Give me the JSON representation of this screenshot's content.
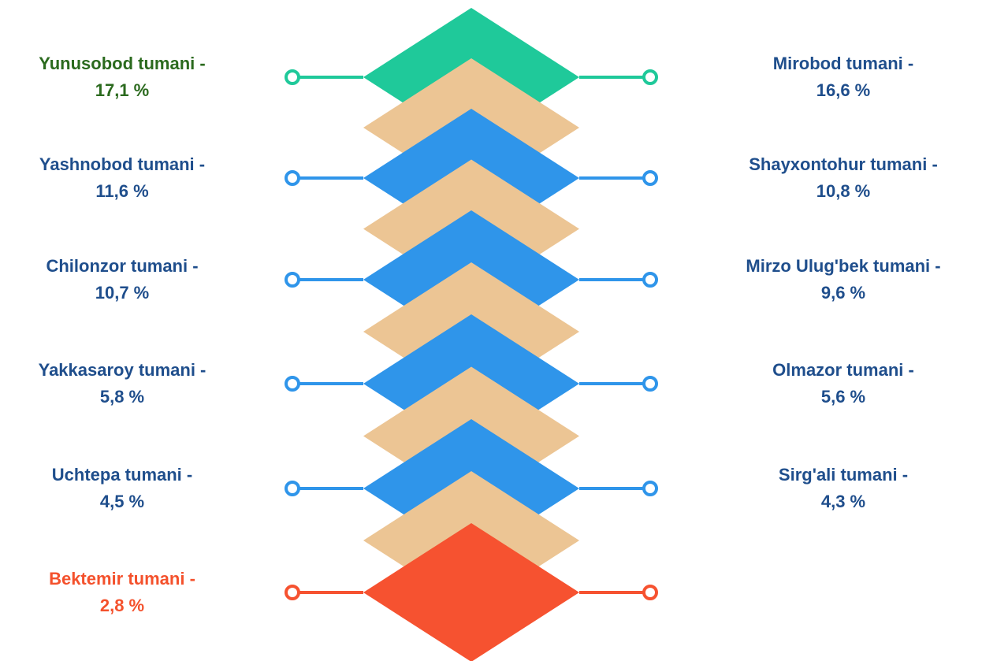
{
  "rows": [
    {
      "left": {
        "name": "Yunusobod tumani -",
        "value": "17,1 %"
      },
      "right": {
        "name": "Mirobod tumani -",
        "value": "16,6 %"
      },
      "color": "#1fc99a",
      "label_color": "#2b6a1e"
    },
    {
      "left": {
        "name": "Yashnobod tumani -",
        "value": "11,6 %"
      },
      "right": {
        "name": "Shayxontohur tumani -",
        "value": "10,8 %"
      },
      "color": "#2f95ea",
      "label_color": "#1f4e8c"
    },
    {
      "left": {
        "name": "Chilonzor tumani -",
        "value": "10,7 %"
      },
      "right": {
        "name": "Mirzo Ulug'bek tumani -",
        "value": "9,6 %"
      },
      "color": "#2f95ea",
      "label_color": "#1f4e8c"
    },
    {
      "left": {
        "name": "Yakkasaroy tumani -",
        "value": "5,8 %"
      },
      "right": {
        "name": "Olmazor tumani -",
        "value": "5,6 %"
      },
      "color": "#2f95ea",
      "label_color": "#1f4e8c"
    },
    {
      "left": {
        "name": "Uchtepa tumani -",
        "value": "4,5 %"
      },
      "right": {
        "name": "Sirg'ali tumani -",
        "value": "4,3 %"
      },
      "color": "#2f95ea",
      "label_color": "#1f4e8c"
    },
    {
      "left": {
        "name": "Bektemir tumani -",
        "value": "2,8 %"
      },
      "color": "#f65230",
      "label_color": "#f4512c"
    }
  ]
}
